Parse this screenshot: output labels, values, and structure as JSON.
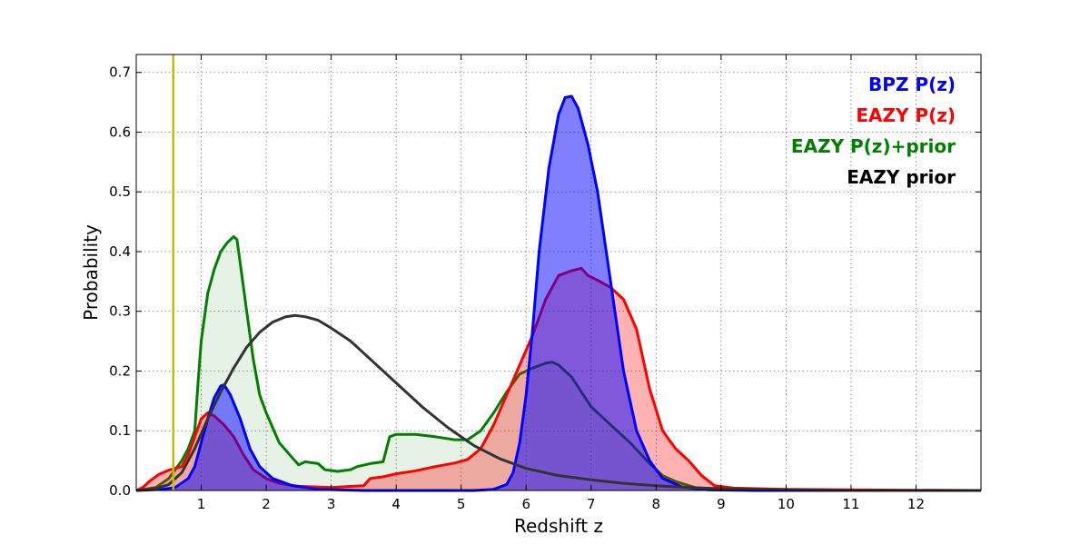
{
  "chart_data": {
    "type": "area",
    "title": "",
    "xlabel": "Redshift z",
    "ylabel": "Probability",
    "xlim": [
      0,
      13
    ],
    "ylim": [
      0,
      0.73
    ],
    "xticks": [
      1,
      2,
      3,
      4,
      5,
      6,
      7,
      8,
      9,
      10,
      11,
      12
    ],
    "xtick_labels": [
      "1",
      "2",
      "3",
      "4",
      "5",
      "6",
      "7",
      "8",
      "9",
      "10",
      "11",
      "12"
    ],
    "yticks": [
      0.0,
      0.1,
      0.2,
      0.3,
      0.4,
      0.5,
      0.6,
      0.7
    ],
    "ytick_labels": [
      "0.0",
      "0.1",
      "0.2",
      "0.3",
      "0.4",
      "0.5",
      "0.6",
      "0.7"
    ],
    "grid": true,
    "legend_position": "top-right",
    "vertical_line": {
      "x": 0.57,
      "color": "#bfbf00"
    },
    "series": [
      {
        "name": "EAZY P(z)+prior",
        "color": "#008000",
        "fill": "#008000",
        "fill_opacity": 0.1,
        "points": [
          [
            0,
            0
          ],
          [
            0.3,
            0.005
          ],
          [
            0.5,
            0.02
          ],
          [
            0.7,
            0.05
          ],
          [
            0.8,
            0.07
          ],
          [
            0.9,
            0.1
          ],
          [
            0.95,
            0.18
          ],
          [
            1.0,
            0.25
          ],
          [
            1.1,
            0.33
          ],
          [
            1.2,
            0.37
          ],
          [
            1.3,
            0.4
          ],
          [
            1.4,
            0.415
          ],
          [
            1.5,
            0.425
          ],
          [
            1.55,
            0.42
          ],
          [
            1.6,
            0.38
          ],
          [
            1.7,
            0.3
          ],
          [
            1.8,
            0.22
          ],
          [
            1.9,
            0.16
          ],
          [
            2.0,
            0.13
          ],
          [
            2.2,
            0.08
          ],
          [
            2.4,
            0.055
          ],
          [
            2.5,
            0.043
          ],
          [
            2.6,
            0.048
          ],
          [
            2.8,
            0.045
          ],
          [
            2.9,
            0.035
          ],
          [
            3.1,
            0.032
          ],
          [
            3.3,
            0.035
          ],
          [
            3.4,
            0.04
          ],
          [
            3.6,
            0.045
          ],
          [
            3.8,
            0.048
          ],
          [
            3.9,
            0.09
          ],
          [
            4.0,
            0.094
          ],
          [
            4.3,
            0.094
          ],
          [
            4.6,
            0.09
          ],
          [
            4.9,
            0.085
          ],
          [
            5.1,
            0.085
          ],
          [
            5.3,
            0.1
          ],
          [
            5.5,
            0.13
          ],
          [
            5.7,
            0.165
          ],
          [
            5.9,
            0.195
          ],
          [
            6.1,
            0.205
          ],
          [
            6.3,
            0.213
          ],
          [
            6.4,
            0.215
          ],
          [
            6.5,
            0.21
          ],
          [
            6.7,
            0.19
          ],
          [
            7.0,
            0.14
          ],
          [
            7.3,
            0.11
          ],
          [
            7.6,
            0.08
          ],
          [
            7.9,
            0.045
          ],
          [
            8.1,
            0.025
          ],
          [
            8.3,
            0.015
          ],
          [
            8.6,
            0.005
          ],
          [
            9.0,
            0.001
          ],
          [
            10,
            0
          ],
          [
            13,
            0
          ]
        ]
      },
      {
        "name": "EAZY P(z)",
        "color": "#ff0000",
        "fill": "#ff0000",
        "fill_opacity": 0.3,
        "points": [
          [
            0,
            0
          ],
          [
            0.1,
            0.005
          ],
          [
            0.2,
            0.015
          ],
          [
            0.35,
            0.027
          ],
          [
            0.5,
            0.034
          ],
          [
            0.7,
            0.04
          ],
          [
            0.8,
            0.06
          ],
          [
            0.9,
            0.09
          ],
          [
            1.0,
            0.12
          ],
          [
            1.1,
            0.13
          ],
          [
            1.2,
            0.125
          ],
          [
            1.35,
            0.11
          ],
          [
            1.5,
            0.09
          ],
          [
            1.65,
            0.06
          ],
          [
            1.8,
            0.035
          ],
          [
            2.0,
            0.02
          ],
          [
            2.2,
            0.012
          ],
          [
            2.5,
            0.007
          ],
          [
            3.0,
            0.005
          ],
          [
            3.5,
            0.008
          ],
          [
            3.6,
            0.02
          ],
          [
            3.8,
            0.023
          ],
          [
            4.0,
            0.028
          ],
          [
            4.3,
            0.033
          ],
          [
            4.6,
            0.04
          ],
          [
            4.9,
            0.046
          ],
          [
            5.1,
            0.052
          ],
          [
            5.3,
            0.07
          ],
          [
            5.5,
            0.11
          ],
          [
            5.7,
            0.16
          ],
          [
            5.9,
            0.21
          ],
          [
            6.1,
            0.26
          ],
          [
            6.3,
            0.32
          ],
          [
            6.5,
            0.36
          ],
          [
            6.7,
            0.368
          ],
          [
            6.85,
            0.372
          ],
          [
            6.95,
            0.36
          ],
          [
            7.1,
            0.352
          ],
          [
            7.3,
            0.34
          ],
          [
            7.5,
            0.32
          ],
          [
            7.7,
            0.27
          ],
          [
            7.9,
            0.17
          ],
          [
            8.1,
            0.1
          ],
          [
            8.3,
            0.07
          ],
          [
            8.5,
            0.05
          ],
          [
            8.7,
            0.025
          ],
          [
            8.9,
            0.008
          ],
          [
            9.2,
            0.004
          ],
          [
            10.0,
            0.002
          ],
          [
            11.0,
            0.001
          ],
          [
            13,
            0
          ]
        ]
      },
      {
        "name": "BPZ P(z)",
        "color": "#0000ff",
        "fill": "#0000ff",
        "fill_opacity": 0.5,
        "points": [
          [
            0,
            0
          ],
          [
            0.4,
            0.002
          ],
          [
            0.6,
            0.005
          ],
          [
            0.8,
            0.02
          ],
          [
            0.9,
            0.04
          ],
          [
            1.0,
            0.08
          ],
          [
            1.1,
            0.12
          ],
          [
            1.2,
            0.155
          ],
          [
            1.3,
            0.175
          ],
          [
            1.35,
            0.177
          ],
          [
            1.45,
            0.16
          ],
          [
            1.6,
            0.12
          ],
          [
            1.75,
            0.07
          ],
          [
            1.9,
            0.04
          ],
          [
            2.1,
            0.02
          ],
          [
            2.4,
            0.008
          ],
          [
            2.8,
            0.002
          ],
          [
            3.5,
            0
          ],
          [
            5.2,
            0
          ],
          [
            5.5,
            0.002
          ],
          [
            5.7,
            0.01
          ],
          [
            5.8,
            0.03
          ],
          [
            5.9,
            0.08
          ],
          [
            6.0,
            0.16
          ],
          [
            6.1,
            0.27
          ],
          [
            6.2,
            0.4
          ],
          [
            6.35,
            0.54
          ],
          [
            6.5,
            0.63
          ],
          [
            6.6,
            0.658
          ],
          [
            6.7,
            0.66
          ],
          [
            6.8,
            0.64
          ],
          [
            6.95,
            0.58
          ],
          [
            7.1,
            0.5
          ],
          [
            7.3,
            0.35
          ],
          [
            7.5,
            0.2
          ],
          [
            7.7,
            0.1
          ],
          [
            7.9,
            0.05
          ],
          [
            8.1,
            0.02
          ],
          [
            8.4,
            0.006
          ],
          [
            8.8,
            0.001
          ],
          [
            9.5,
            0
          ],
          [
            13,
            0
          ]
        ]
      },
      {
        "name": "EAZY prior",
        "color": "#333333",
        "fill": "none",
        "fill_opacity": 0,
        "points": [
          [
            0,
            0
          ],
          [
            0.3,
            0.003
          ],
          [
            0.5,
            0.01
          ],
          [
            0.7,
            0.03
          ],
          [
            0.9,
            0.07
          ],
          [
            1.1,
            0.12
          ],
          [
            1.3,
            0.165
          ],
          [
            1.5,
            0.205
          ],
          [
            1.7,
            0.24
          ],
          [
            1.9,
            0.265
          ],
          [
            2.1,
            0.282
          ],
          [
            2.3,
            0.291
          ],
          [
            2.45,
            0.293
          ],
          [
            2.6,
            0.291
          ],
          [
            2.8,
            0.285
          ],
          [
            3.0,
            0.272
          ],
          [
            3.3,
            0.25
          ],
          [
            3.6,
            0.22
          ],
          [
            4.0,
            0.18
          ],
          [
            4.4,
            0.14
          ],
          [
            4.8,
            0.105
          ],
          [
            5.2,
            0.075
          ],
          [
            5.6,
            0.053
          ],
          [
            6.0,
            0.037
          ],
          [
            6.5,
            0.025
          ],
          [
            7.0,
            0.018
          ],
          [
            7.5,
            0.012
          ],
          [
            8.0,
            0.008
          ],
          [
            8.5,
            0.005
          ],
          [
            9.0,
            0.003
          ],
          [
            10,
            0.001
          ],
          [
            11,
            0
          ],
          [
            13,
            0
          ]
        ]
      }
    ],
    "legend": [
      {
        "label": "BPZ P(z)",
        "color": "#0000ff"
      },
      {
        "label": "EAZY P(z)",
        "color": "#ff0000"
      },
      {
        "label": "EAZY P(z)+prior",
        "color": "#008000"
      },
      {
        "label": "EAZY prior",
        "color": "#000000"
      }
    ]
  }
}
